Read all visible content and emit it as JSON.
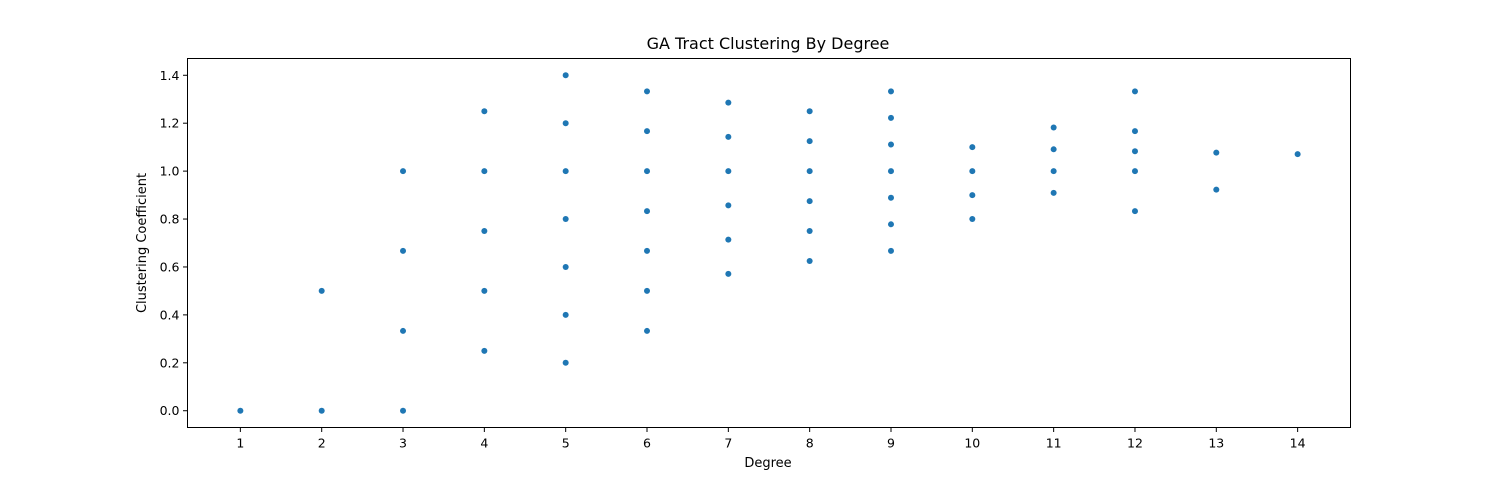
{
  "chart_data": {
    "type": "scatter",
    "title": "GA Tract Clustering By Degree",
    "xlabel": "Degree",
    "ylabel": "Clustering Coefficient",
    "xlim": [
      0.35,
      14.65
    ],
    "ylim": [
      -0.07,
      1.47
    ],
    "xticks": [
      "1",
      "2",
      "3",
      "4",
      "5",
      "6",
      "7",
      "8",
      "9",
      "10",
      "11",
      "12",
      "13",
      "14"
    ],
    "yticks": [
      "0.0",
      "0.2",
      "0.4",
      "0.6",
      "0.8",
      "1.0",
      "1.2",
      "1.4"
    ],
    "grid": false,
    "color": "#1f77b4",
    "series": [
      {
        "points": [
          [
            1,
            0.0
          ],
          [
            2,
            0.0
          ],
          [
            2,
            0.5
          ],
          [
            3,
            0.0
          ],
          [
            3,
            0.333
          ],
          [
            3,
            0.667
          ],
          [
            3,
            1.0
          ],
          [
            4,
            0.25
          ],
          [
            4,
            0.5
          ],
          [
            4,
            0.75
          ],
          [
            4,
            1.0
          ],
          [
            4,
            1.25
          ],
          [
            5,
            0.2
          ],
          [
            5,
            0.4
          ],
          [
            5,
            0.6
          ],
          [
            5,
            0.8
          ],
          [
            5,
            1.0
          ],
          [
            5,
            1.2
          ],
          [
            5,
            1.4
          ],
          [
            6,
            0.333
          ],
          [
            6,
            0.5
          ],
          [
            6,
            0.667
          ],
          [
            6,
            0.833
          ],
          [
            6,
            1.0
          ],
          [
            6,
            1.167
          ],
          [
            6,
            1.333
          ],
          [
            7,
            0.571
          ],
          [
            7,
            0.714
          ],
          [
            7,
            0.857
          ],
          [
            7,
            1.0
          ],
          [
            7,
            1.143
          ],
          [
            7,
            1.286
          ],
          [
            8,
            0.625
          ],
          [
            8,
            0.75
          ],
          [
            8,
            0.875
          ],
          [
            8,
            1.0
          ],
          [
            8,
            1.125
          ],
          [
            8,
            1.25
          ],
          [
            9,
            0.667
          ],
          [
            9,
            0.778
          ],
          [
            9,
            0.889
          ],
          [
            9,
            1.0
          ],
          [
            9,
            1.111
          ],
          [
            9,
            1.222
          ],
          [
            9,
            1.333
          ],
          [
            10,
            0.8
          ],
          [
            10,
            0.9
          ],
          [
            10,
            1.0
          ],
          [
            10,
            1.1
          ],
          [
            11,
            0.909
          ],
          [
            11,
            1.0
          ],
          [
            11,
            1.091
          ],
          [
            11,
            1.182
          ],
          [
            12,
            0.833
          ],
          [
            12,
            1.0
          ],
          [
            12,
            1.083
          ],
          [
            12,
            1.167
          ],
          [
            12,
            1.333
          ],
          [
            13,
            0.923
          ],
          [
            13,
            1.077
          ],
          [
            14,
            1.071
          ]
        ]
      }
    ]
  }
}
